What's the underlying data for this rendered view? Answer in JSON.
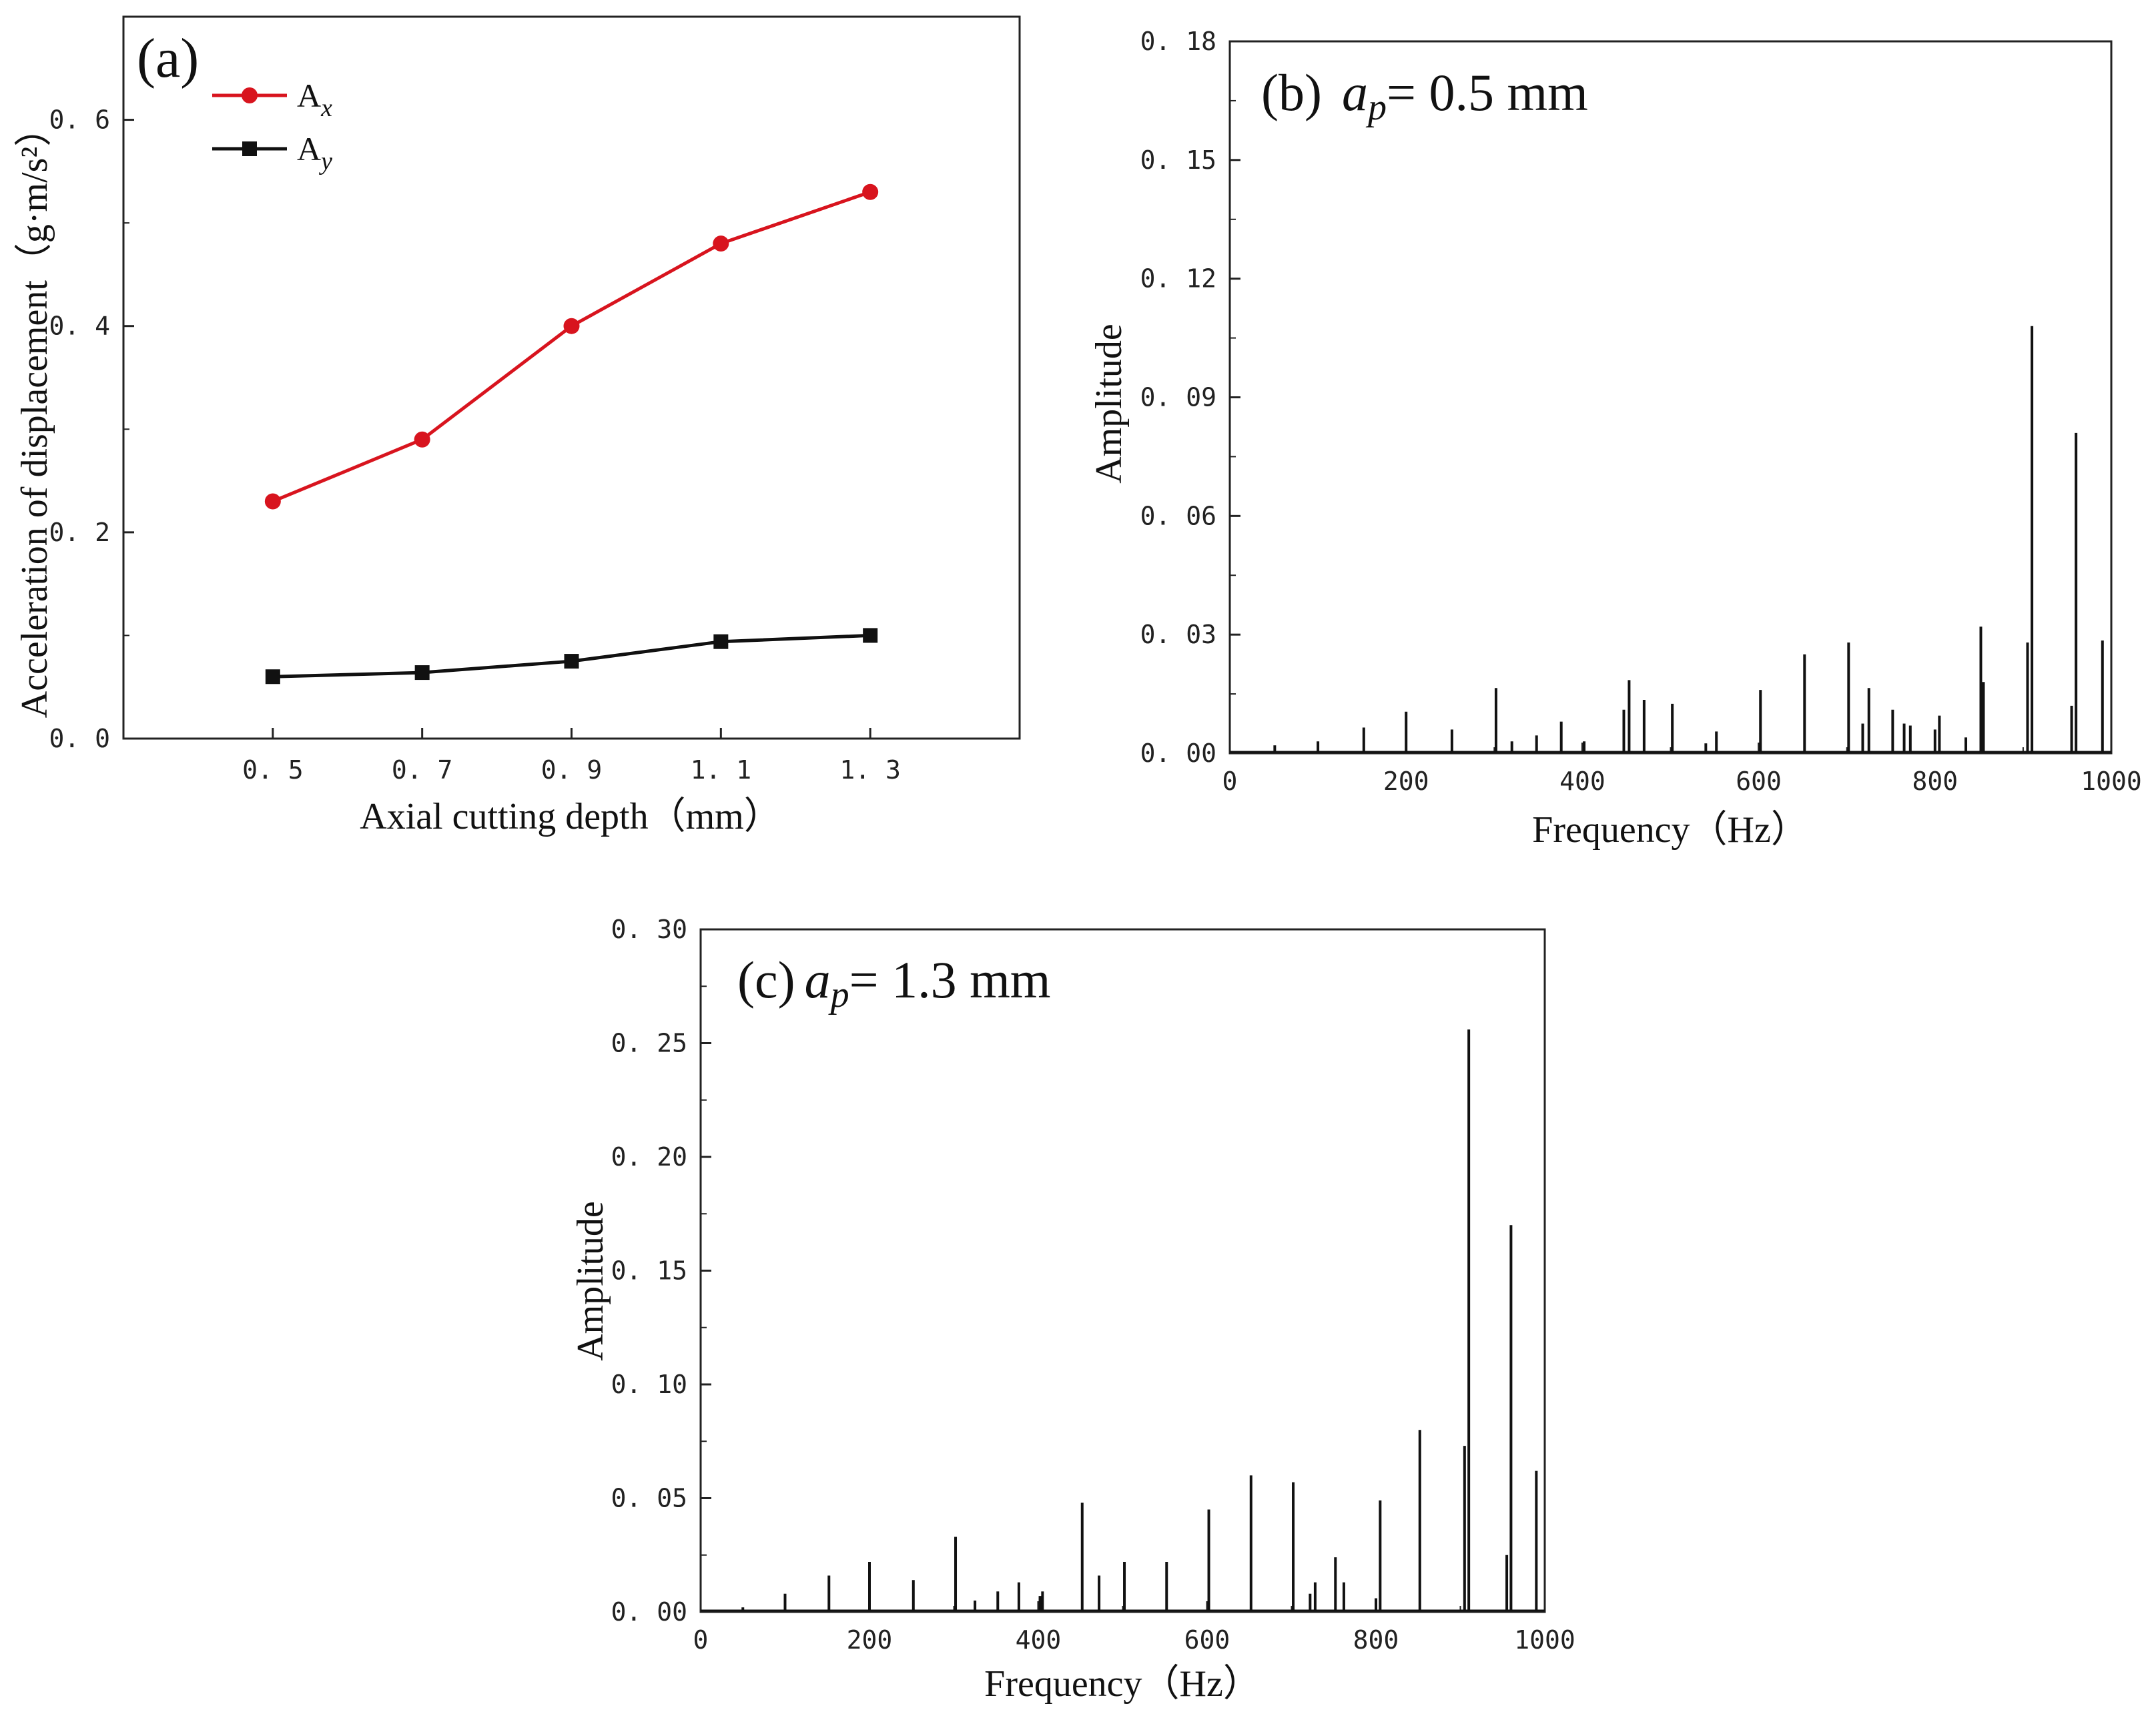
{
  "chart_data": [
    {
      "panel": "(a)",
      "type": "line",
      "title": "",
      "xlabel": "Axial cutting depth（mm）",
      "ylabel": "Acceleration of displacement（g·m/s²）",
      "categories": [
        "0. 5",
        "0. 7",
        "0. 9",
        "1. 1",
        "1. 3"
      ],
      "x": [
        0.5,
        0.7,
        0.9,
        1.1,
        1.3
      ],
      "xlim": [
        0.3,
        1.5
      ],
      "ylim": [
        0,
        0.7
      ],
      "yticks": [
        0.0,
        0.2,
        0.4,
        0.6
      ],
      "ytick_labels": [
        "0. 0",
        "0. 2",
        "0. 4",
        "0. 6"
      ],
      "series": [
        {
          "name": "A",
          "subscript": "x",
          "color": "#d8141e",
          "marker": "circle",
          "values": [
            0.23,
            0.29,
            0.4,
            0.48,
            0.53
          ]
        },
        {
          "name": "A",
          "subscript": "y",
          "color": "#111111",
          "marker": "square",
          "values": [
            0.06,
            0.064,
            0.075,
            0.094,
            0.1
          ]
        }
      ],
      "legend_position": "top-left",
      "grid": false
    },
    {
      "panel": "(b)",
      "type": "line",
      "annotation_var": "a",
      "annotation_sub": "p",
      "annotation_value": "= 0.5 mm",
      "xlabel": "Frequency（Hz）",
      "ylabel": "Amplitude",
      "xlim": [
        0,
        1000
      ],
      "ylim": [
        0,
        0.18
      ],
      "xticks": [
        0,
        200,
        400,
        600,
        800,
        1000
      ],
      "xtick_labels": [
        "0",
        "200",
        "400",
        "600",
        "800",
        "1000"
      ],
      "yticks": [
        0,
        0.03,
        0.06,
        0.09,
        0.12,
        0.15,
        0.18
      ],
      "ytick_labels": [
        "0. 00",
        "0. 03",
        "0. 06",
        "0. 09",
        "0. 12",
        "0. 15",
        "0. 18"
      ],
      "peaks": {
        "freq": [
          51,
          100,
          152,
          200,
          252,
          302,
          320,
          348,
          376,
          402,
          447,
          453,
          470,
          502,
          540,
          552,
          602,
          652,
          702,
          718,
          725,
          752,
          765,
          772,
          800,
          805,
          835,
          852,
          855,
          905,
          910,
          955,
          960,
          990
        ],
        "amp": [
          0.002,
          0.003,
          0.0065,
          0.0105,
          0.006,
          0.0165,
          0.003,
          0.0045,
          0.008,
          0.003,
          0.011,
          0.0185,
          0.0135,
          0.0125,
          0.0025,
          0.0055,
          0.016,
          0.025,
          0.028,
          0.0075,
          0.0165,
          0.011,
          0.0075,
          0.007,
          0.006,
          0.0095,
          0.004,
          0.032,
          0.018,
          0.028,
          0.108,
          0.012,
          0.081,
          0.0285
        ]
      },
      "grid": false
    },
    {
      "panel": "(c)",
      "type": "line",
      "annotation_var": "a",
      "annotation_sub": "p",
      "annotation_value": "= 1.3 mm",
      "xlabel": "Frequency（Hz）",
      "ylabel": "Amplitude",
      "xlim": [
        0,
        1000
      ],
      "ylim": [
        0,
        0.3
      ],
      "xticks": [
        0,
        200,
        400,
        600,
        800,
        1000
      ],
      "xtick_labels": [
        "0",
        "200",
        "400",
        "600",
        "800",
        "1000"
      ],
      "yticks": [
        0,
        0.05,
        0.1,
        0.15,
        0.2,
        0.25,
        0.3
      ],
      "ytick_labels": [
        "0. 00",
        "0. 05",
        "0. 10",
        "0. 15",
        "0. 20",
        "0. 25",
        "0. 30"
      ],
      "peaks": {
        "freq": [
          50,
          100,
          152,
          200,
          252,
          302,
          325,
          352,
          377,
          402,
          405,
          452,
          472,
          502,
          552,
          602,
          652,
          702,
          722,
          728,
          752,
          762,
          800,
          805,
          852,
          905,
          910,
          955,
          960,
          990
        ],
        "amp": [
          0.002,
          0.008,
          0.016,
          0.022,
          0.014,
          0.033,
          0.005,
          0.009,
          0.013,
          0.007,
          0.009,
          0.048,
          0.016,
          0.022,
          0.022,
          0.045,
          0.06,
          0.057,
          0.008,
          0.013,
          0.024,
          0.013,
          0.006,
          0.049,
          0.08,
          0.073,
          0.256,
          0.025,
          0.17,
          0.062
        ]
      },
      "grid": false
    }
  ]
}
